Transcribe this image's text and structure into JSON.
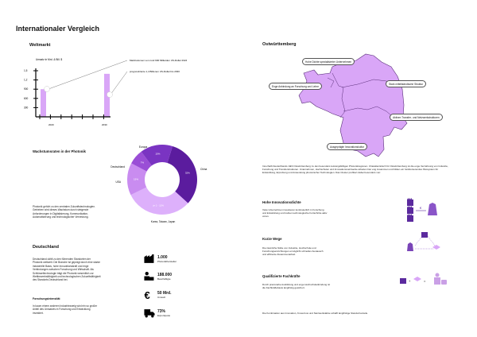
{
  "title": "Internationaler Vergleich",
  "weltmarkt": {
    "heading": "Weltmarkt",
    "annotation_2024": "Marktvolumen von rund 900 Milliarden US-Dollar 2024",
    "annotation_2030": "prognostizierte 1,4 Billionen US-Dollar bis 2030"
  },
  "chart_data": [
    {
      "type": "bar",
      "ylabel": "Umsatz in Mrd. & Bill. $",
      "yticks": [
        "1,5",
        "1,2",
        "900",
        "600",
        "300"
      ],
      "xticks": [
        "2020",
        "2030"
      ],
      "categories": [
        "2024",
        "2030"
      ],
      "values": [
        900,
        1400
      ],
      "color": "#d9a6f7"
    },
    {
      "type": "pie",
      "title": "Wachstumsraten in der Photonik",
      "categories": [
        "China",
        "Korea, Taiwan, Japan",
        "USA",
        "Deutschland",
        "Europa"
      ],
      "labels": [
        "32%",
        "je 1 - 11%",
        "15%",
        "7%",
        "15%"
      ],
      "values": [
        32,
        31,
        15,
        7,
        15
      ],
      "colors": [
        "#5b1c9e",
        "#ddb0fb",
        "#c98cf0",
        "#9a4ed6",
        "#7a34c2"
      ]
    }
  ],
  "photonik_text": "Photonik gehört zu den zentralen Zukunftstechnologien. Getrieben wird dieses Wachstum durch steigende Anforderungen in Digitalisierung, Kommunikation, Automatisierung und technologischer Vernetzung.",
  "deutschland": {
    "heading": "Deutschland",
    "text": "Deutschland zählt zu den führenden Standorten der Photonik weltweit. Die Branche ist geprägt durch eine starke industrielle Basis, hohe Innovationskraft und enge Verbindungen zwischen Forschung und Wirtschaft. Als Schlüsseltechnologie trägt die Photonik wesentlich zur Wettbewerbsfähigkeit und technologischen Zukunftsfähigkeit des Standorts Deutschland bei.",
    "sub_heading": "Forschungsintensität",
    "sub_text": "In kaum einem anderen Industriezweig wird ein so großer Anteil des Umsatzes in Forschung und Entwicklung investiert.",
    "stats": [
      {
        "icon": "factory-icon",
        "value": "1.000",
        "label": "Photonikhersteller"
      },
      {
        "icon": "worker-icon",
        "value": "188.000",
        "label": "Beschäftigte"
      },
      {
        "icon": "euro-icon",
        "value": "50 Mrd.",
        "label": "Umsatz"
      },
      {
        "icon": "truck-icon",
        "value": "73%",
        "label": "Exportquote"
      }
    ]
  },
  "ostwuerttemberg": {
    "heading": "Ostwürttemberg",
    "labels": [
      "Hohe Dichte spezialisierter Unternehmen",
      "Enge Anbindung an Forschung und Lehre",
      "Stark mittelständische Struktur",
      "Aktiven Transfer- und Netzwerkstrukturen",
      "Ausgeprägte Innovationskultur"
    ],
    "map_color": "#d9a6f7",
    "text": "Innerhalb Deutschlands zählt Ostwürttemberg zu den besonders leistungsfähigen Photonikregionen. Charakteristisch für Ostwürttemberg ist die enge Verzahnung von Industrie, Forschung und Transferstrukturen. Unternehmen, Hochschulen und Innovationsnetzwerke arbeiten hier eng zusammen und bilden ein funktionierendes Ökosystem für Entwicklung, Erprobung und Anwendung photonischer Technologien. Das Cluster profitiert dabei besonders von:"
  },
  "features": [
    {
      "heading": "Hohe Innovationsdichte",
      "text": "Viele Unternehmen investieren kontinuierlich in Forschung und Entwicklung und treiben technologische Fortschritte aktiv voran."
    },
    {
      "heading": "Kurze Wege",
      "text": "Die räumliche Nähe von Industrie, Hochschule und Forschungseinrichtungen ermöglicht schnellen Austausch und effiziente Zusammenarbeit."
    },
    {
      "heading": "Qualifizierte Fachkräfte",
      "text": "Durch praxisnahe Ausbildung und enge Hochschulanbindung ist die Fachkräftebasis langfristig gesichert."
    }
  ],
  "conclusion": "Die Kombination aus Innovation, Know-how und Netzwerkstärke schafft langfristige Standortvorteile.",
  "accent": "#5b2a9e"
}
